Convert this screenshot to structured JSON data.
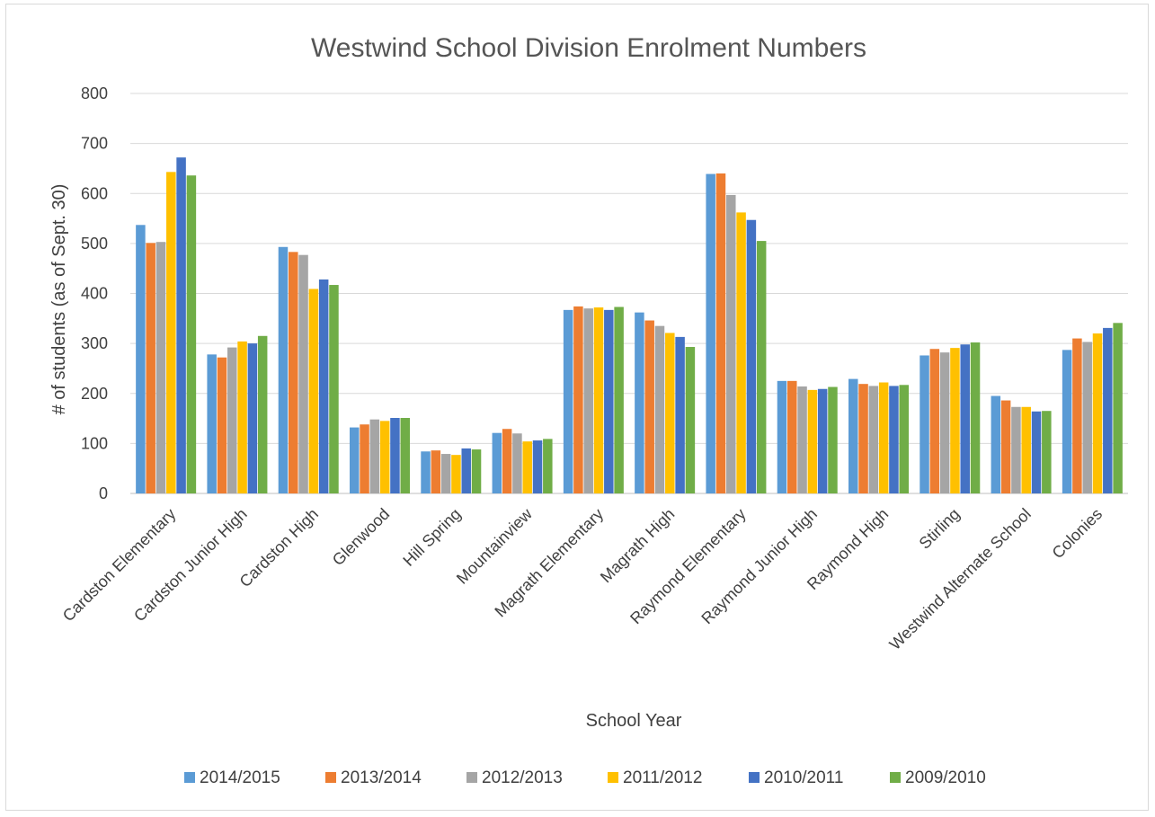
{
  "chart_data": {
    "type": "bar",
    "title": "Westwind School Division Enrolment Numbers",
    "xlabel": "School Year",
    "ylabel": "# of students (as of Sept. 30)",
    "ylim": [
      0,
      800
    ],
    "yticks": [
      0,
      100,
      200,
      300,
      400,
      500,
      600,
      700,
      800
    ],
    "grid": true,
    "legend": "bottom",
    "categories": [
      "Cardston Elementary",
      "Cardston Junior High",
      "Cardston High",
      "Glenwood",
      "Hill Spring",
      "Mountainview",
      "Magrath Elementary",
      "Magrath High",
      "Raymond Elementary",
      "Raymond Junior High",
      "Raymond High",
      "Stirling",
      "Westwind Alternate School",
      "Colonies"
    ],
    "series": [
      {
        "name": "2014/2015",
        "color": "#5B9BD5",
        "values": [
          537,
          278,
          493,
          132,
          84,
          121,
          367,
          362,
          639,
          225,
          229,
          276,
          195,
          287
        ]
      },
      {
        "name": "2013/2014",
        "color": "#ED7D31",
        "values": [
          501,
          272,
          483,
          138,
          86,
          129,
          374,
          346,
          640,
          225,
          219,
          289,
          186,
          310
        ]
      },
      {
        "name": "2012/2013",
        "color": "#A5A5A5",
        "values": [
          503,
          292,
          477,
          148,
          79,
          120,
          370,
          335,
          597,
          214,
          215,
          282,
          173,
          303
        ]
      },
      {
        "name": "2011/2012",
        "color": "#FFC000",
        "values": [
          643,
          304,
          409,
          145,
          77,
          104,
          372,
          321,
          562,
          207,
          222,
          291,
          173,
          320
        ]
      },
      {
        "name": "2010/2011",
        "color": "#4472C4",
        "values": [
          672,
          300,
          428,
          151,
          90,
          106,
          367,
          313,
          547,
          209,
          215,
          298,
          164,
          331
        ]
      },
      {
        "name": "2009/2010",
        "color": "#70AD47",
        "values": [
          636,
          315,
          417,
          151,
          88,
          109,
          373,
          293,
          505,
          213,
          217,
          302,
          165,
          341
        ]
      }
    ]
  }
}
